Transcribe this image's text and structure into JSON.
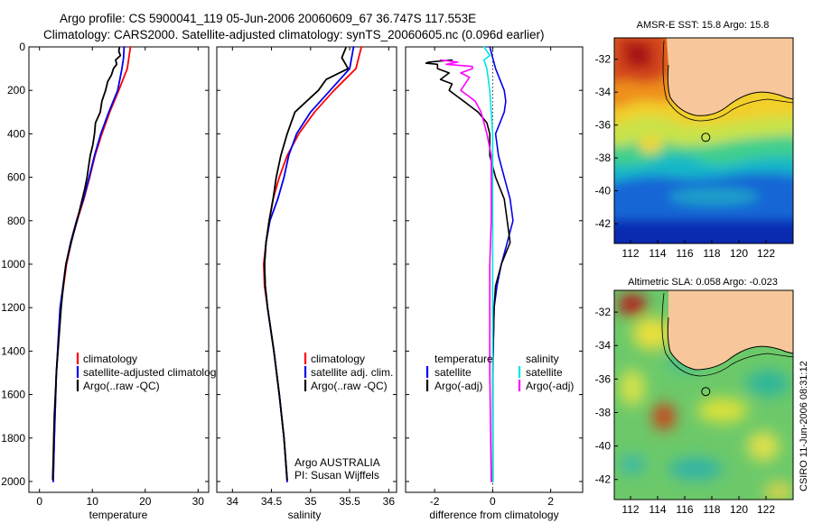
{
  "header": {
    "line1": "Argo profile: CS 5900041_119 05-Jun-2006 20060609_67 36.747S 117.553E",
    "line2": "Climatology: CARS2000. Satellite-adjusted climatology: synTS_20060605.nc (0.096d earlier)"
  },
  "side_label": "CSIRO 11-Jun-2006 08:31:12",
  "colors": {
    "red": "#ff0000",
    "blue": "#0000ee",
    "black": "#000000",
    "magenta": "#ff00ff",
    "cyan": "#00e5e5",
    "land": "#f7c79b"
  },
  "chart_data": [
    {
      "id": "temperature",
      "type": "line",
      "xlabel": "temperature",
      "ylabel": "",
      "xlim": [
        -2,
        32
      ],
      "ylim": [
        2050,
        0
      ],
      "xticks": [
        "0",
        "10",
        "20",
        "30"
      ],
      "yticks": [
        "0",
        "200",
        "400",
        "600",
        "800",
        "1000",
        "1200",
        "1400",
        "1600",
        "1800",
        "2000"
      ],
      "legend": {
        "placement": "center-right",
        "entries": [
          "climatology",
          "satellite-adjusted climatology",
          "Argo(..raw -QC)"
        ]
      },
      "series": [
        {
          "name": "climatology",
          "color": "red",
          "depth": [
            0,
            100,
            200,
            300,
            400,
            500,
            600,
            700,
            800,
            900,
            1000,
            1200,
            1500,
            1800,
            2000
          ],
          "values": [
            17.2,
            16.6,
            15.0,
            13.3,
            11.8,
            10.5,
            9.5,
            8.4,
            7.1,
            6.0,
            5.1,
            4.0,
            3.2,
            2.8,
            2.6
          ]
        },
        {
          "name": "satellite-adjusted climatology",
          "color": "blue",
          "depth": [
            0,
            50,
            100,
            200,
            300,
            400,
            500,
            600,
            700,
            800,
            900,
            1000,
            1200,
            1500,
            1800,
            2000
          ],
          "values": [
            16.0,
            15.9,
            15.6,
            14.8,
            13.1,
            11.6,
            10.4,
            9.4,
            8.3,
            7.0,
            5.9,
            5.0,
            3.9,
            3.2,
            2.8,
            2.6
          ]
        },
        {
          "name": "Argo(..raw -QC)",
          "color": "black",
          "depth": [
            5,
            20,
            40,
            60,
            80,
            100,
            130,
            160,
            200,
            250,
            300,
            350,
            400,
            450,
            500,
            550,
            600,
            650,
            700,
            750,
            800,
            850,
            900,
            950,
            1000,
            1100,
            1200,
            1300,
            1400,
            1500,
            1600,
            1700,
            1800,
            1900,
            1990
          ],
          "values": [
            15.1,
            15.0,
            15.3,
            14.4,
            14.6,
            14.0,
            13.6,
            12.9,
            12.5,
            11.8,
            11.5,
            10.6,
            10.4,
            10.1,
            9.6,
            9.3,
            9.0,
            8.6,
            8.1,
            7.6,
            7.1,
            6.5,
            6.0,
            5.5,
            5.0,
            4.5,
            4.1,
            3.8,
            3.5,
            3.2,
            3.0,
            2.8,
            2.7,
            2.6,
            2.5
          ]
        }
      ]
    },
    {
      "id": "salinity",
      "type": "line",
      "xlabel": "salinity",
      "ylabel": "",
      "xlim": [
        33.8,
        36.1
      ],
      "ylim": [
        2050,
        0
      ],
      "xticks": [
        "34",
        "34.5",
        "35",
        "35.5",
        "36"
      ],
      "legend": {
        "placement": "center-right",
        "entries": [
          "climatology",
          "satellite adj. clim.",
          "Argo(..raw -QC)"
        ]
      },
      "annotation": [
        "Argo AUSTRALIA",
        "PI: Susan Wijffels"
      ],
      "series": [
        {
          "name": "climatology",
          "color": "red",
          "depth": [
            0,
            100,
            200,
            300,
            400,
            500,
            600,
            700,
            800,
            900,
            1000,
            1100,
            1200,
            1400,
            1600,
            1800,
            2000
          ],
          "values": [
            35.65,
            35.58,
            35.3,
            35.05,
            34.85,
            34.7,
            34.6,
            34.52,
            34.47,
            34.43,
            34.4,
            34.41,
            34.45,
            34.53,
            34.6,
            34.66,
            34.7
          ]
        },
        {
          "name": "satellite adj. clim.",
          "color": "blue",
          "depth": [
            0,
            100,
            200,
            300,
            400,
            500,
            600,
            700,
            800,
            900,
            1000,
            1100,
            1200,
            1400,
            1600,
            1800,
            2000
          ],
          "values": [
            35.55,
            35.5,
            35.25,
            35.0,
            34.82,
            34.72,
            34.66,
            34.58,
            34.48,
            34.43,
            34.41,
            34.42,
            34.45,
            34.53,
            34.6,
            34.66,
            34.7
          ]
        },
        {
          "name": "Argo(..raw -QC)",
          "color": "black",
          "depth": [
            5,
            50,
            100,
            150,
            200,
            250,
            300,
            350,
            400,
            500,
            600,
            700,
            800,
            900,
            1000,
            1100,
            1200,
            1400,
            1600,
            1800,
            1990
          ],
          "values": [
            35.45,
            35.4,
            35.48,
            35.2,
            35.1,
            34.95,
            34.8,
            34.75,
            34.7,
            34.62,
            34.56,
            34.52,
            34.47,
            34.43,
            34.41,
            34.42,
            34.45,
            34.53,
            34.6,
            34.66,
            34.7
          ]
        }
      ]
    },
    {
      "id": "difference",
      "type": "line",
      "xlabel": "difference from climatology",
      "ylabel": "",
      "xlim": [
        -3,
        3.1
      ],
      "ylim": [
        2050,
        0
      ],
      "xticks": [
        "-2",
        "0",
        "2"
      ],
      "legend": {
        "placement": "center",
        "headers": [
          "temperature",
          "salinity"
        ],
        "entries": [
          "satellite",
          "Argo(-adj)",
          "satellite",
          "Argo(-adj)"
        ]
      },
      "series": [
        {
          "name": "temperature satellite",
          "color": "blue",
          "depth": [
            0,
            100,
            200,
            250,
            300,
            400,
            500,
            600,
            700,
            800,
            900,
            1000,
            1100,
            1200,
            1500,
            2000
          ],
          "values": [
            -0.1,
            0.1,
            0.4,
            0.45,
            0.4,
            0.1,
            0.2,
            0.4,
            0.6,
            0.7,
            0.5,
            0.3,
            0.15,
            0.05,
            0.0,
            0.0
          ]
        },
        {
          "name": "temperature Argo(-adj)",
          "color": "black",
          "depth": [
            60,
            70,
            75,
            80,
            100,
            120,
            150,
            170,
            200,
            230,
            250,
            280,
            300,
            350,
            400,
            500,
            600,
            700,
            800,
            900,
            1000,
            1100,
            1200,
            1500,
            2000
          ],
          "values": [
            -1.4,
            -2.2,
            -2.3,
            -1.9,
            -1.9,
            -1.5,
            -1.8,
            -1.4,
            -1.5,
            -1.2,
            -1.0,
            -0.7,
            -0.5,
            -0.2,
            -0.1,
            -0.1,
            0.1,
            0.4,
            0.5,
            0.6,
            0.3,
            0.1,
            0.05,
            0.0,
            0.0
          ]
        },
        {
          "name": "salinity satellite",
          "color": "cyan",
          "depth": [
            0,
            40,
            60,
            100,
            150,
            200,
            300,
            400,
            600,
            900,
            1200,
            1500,
            2000
          ],
          "values": [
            -0.3,
            -0.1,
            -0.3,
            -0.2,
            -0.15,
            -0.1,
            -0.05,
            0.0,
            0.0,
            0.0,
            0.0,
            0.0,
            0.0
          ]
        },
        {
          "name": "salinity Argo(-adj)",
          "color": "magenta",
          "depth": [
            60,
            70,
            80,
            90,
            100,
            120,
            140,
            160,
            180,
            200,
            220,
            250,
            300,
            350,
            400,
            500,
            600,
            800,
            1000,
            1200,
            1500,
            2000
          ],
          "values": [
            -1.8,
            -1.2,
            -1.6,
            -0.7,
            -0.7,
            -1.1,
            -0.8,
            -0.9,
            -1.0,
            -1.1,
            -0.9,
            -0.6,
            -0.4,
            -0.3,
            -0.2,
            -0.05,
            -0.05,
            -0.05,
            -0.1,
            -0.1,
            -0.1,
            -0.05
          ]
        }
      ]
    },
    {
      "id": "sst_map",
      "type": "heatmap",
      "title": "AMSR-E SST: 15.8 Argo: 15.8",
      "xlim": [
        110.8,
        124
      ],
      "ylim": [
        -43.2,
        -30.7
      ],
      "xticks": [
        "112",
        "114",
        "116",
        "118",
        "120",
        "122"
      ],
      "yticks": [
        "-32",
        "-34",
        "-36",
        "-38",
        "-40",
        "-42"
      ],
      "argo_position": {
        "lon": 117.553,
        "lat": -36.747
      }
    },
    {
      "id": "sla_map",
      "type": "heatmap",
      "title": "Altimetric SLA: 0.058 Argo: -0.023",
      "xlim": [
        110.8,
        124
      ],
      "ylim": [
        -43.2,
        -30.7
      ],
      "xticks": [
        "112",
        "114",
        "116",
        "118",
        "120",
        "122"
      ],
      "yticks": [
        "-32",
        "-34",
        "-36",
        "-38",
        "-40",
        "-42"
      ],
      "argo_position": {
        "lon": 117.553,
        "lat": -36.747
      }
    }
  ]
}
